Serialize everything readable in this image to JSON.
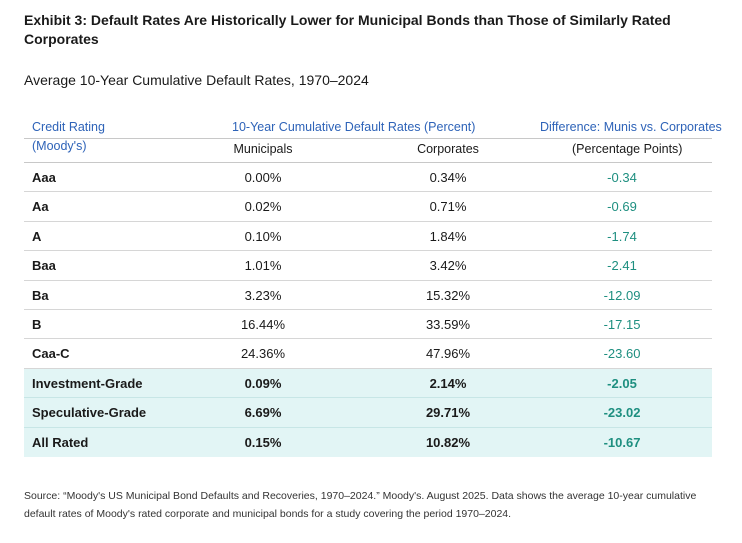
{
  "title": "Exhibit 3: Default Rates Are Historically Lower for Municipal Bonds than Those of Similarly Rated Corporates",
  "subtitle": "Average 10-Year Cumulative Default Rates, 1970–2024",
  "colors": {
    "header_blue": "#2e63b8",
    "diff_teal": "#1e8f80",
    "highlight_bg": "#e2f5f5"
  },
  "table": {
    "header": {
      "rating_line1": "Credit Rating",
      "rating_line2": "(Moody's)",
      "group_label": "10-Year Cumulative Default Rates (Percent)",
      "municipals": "Municipals",
      "corporates": "Corporates",
      "diff_line1": "Difference: Munis vs. Corporates",
      "diff_line2": "(Percentage Points)"
    },
    "rows": [
      {
        "rating": "Aaa",
        "municipals": "0.00%",
        "corporates": "0.34%",
        "difference": "-0.34"
      },
      {
        "rating": "Aa",
        "municipals": "0.02%",
        "corporates": "0.71%",
        "difference": "-0.69"
      },
      {
        "rating": "A",
        "municipals": "0.10%",
        "corporates": "1.84%",
        "difference": "-1.74"
      },
      {
        "rating": "Baa",
        "municipals": "1.01%",
        "corporates": "3.42%",
        "difference": "-2.41"
      },
      {
        "rating": "Ba",
        "municipals": "3.23%",
        "corporates": "15.32%",
        "difference": "-12.09"
      },
      {
        "rating": "B",
        "municipals": "16.44%",
        "corporates": "33.59%",
        "difference": "-17.15"
      },
      {
        "rating": "Caa-C",
        "municipals": "24.36%",
        "corporates": "47.96%",
        "difference": "-23.60"
      }
    ],
    "summary_rows": [
      {
        "rating": "Investment-Grade",
        "municipals": "0.09%",
        "corporates": "2.14%",
        "difference": "-2.05"
      },
      {
        "rating": "Speculative-Grade",
        "municipals": "6.69%",
        "corporates": "29.71%",
        "difference": "-23.02"
      },
      {
        "rating": "All Rated",
        "municipals": "0.15%",
        "corporates": "10.82%",
        "difference": "-10.67"
      }
    ]
  },
  "source": "Source: “Moody's US Municipal Bond Defaults and Recoveries, 1970–2024.” Moody's. August 2025. Data shows the average 10-year cumulative default rates of Moody's rated corporate and municipal bonds for a study covering the period 1970–2024."
}
